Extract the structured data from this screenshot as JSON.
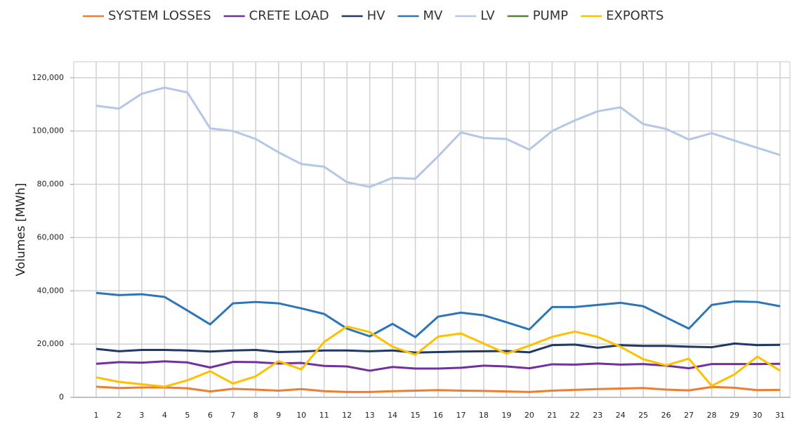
{
  "chart_data": {
    "type": "line",
    "y_label": "Volumes [MWh]",
    "categories": [
      "1",
      "2",
      "3",
      "4",
      "5",
      "6",
      "7",
      "8",
      "9",
      "10",
      "11",
      "12",
      "13",
      "14",
      "15",
      "16",
      "17",
      "18",
      "19",
      "20",
      "21",
      "22",
      "23",
      "24",
      "25",
      "26",
      "27",
      "28",
      "29",
      "30",
      "31"
    ],
    "series": [
      {
        "name": "SYSTEM LOSSES",
        "color": "#ed7d31",
        "values": [
          4000,
          3500,
          3700,
          3700,
          3400,
          2200,
          3200,
          2900,
          2500,
          3100,
          2300,
          2000,
          2000,
          2300,
          2500,
          2700,
          2500,
          2400,
          2200,
          2000,
          2500,
          2800,
          3100,
          3300,
          3500,
          2900,
          2600,
          3900,
          3600,
          2700,
          2800
        ]
      },
      {
        "name": "CRETE LOAD",
        "color": "#7030a0",
        "values": [
          12600,
          13200,
          13000,
          13500,
          13100,
          11200,
          13300,
          13200,
          12700,
          12900,
          11800,
          11600,
          10000,
          11400,
          10800,
          10800,
          11100,
          11900,
          11600,
          10900,
          12400,
          12300,
          12700,
          12300,
          12500,
          11900,
          10900,
          12500,
          12500,
          12500,
          12600
        ]
      },
      {
        "name": "HV",
        "color": "#203864",
        "values": [
          18200,
          17300,
          17800,
          17800,
          17600,
          17200,
          17600,
          17800,
          17000,
          17200,
          17600,
          17600,
          17300,
          17600,
          16800,
          17000,
          17200,
          17300,
          17400,
          16900,
          19600,
          19800,
          18600,
          19600,
          19300,
          19300,
          19000,
          18800,
          20200,
          19600,
          19700
        ]
      },
      {
        "name": "MV",
        "color": "#2e75b6",
        "values": [
          39200,
          38400,
          38700,
          37700,
          32600,
          27400,
          35300,
          35800,
          35300,
          33400,
          31300,
          25800,
          22900,
          27600,
          22600,
          30300,
          31800,
          30800,
          28200,
          25500,
          33900,
          33900,
          34700,
          35500,
          34200,
          30000,
          25800,
          34700,
          36000,
          35800,
          34200
        ]
      },
      {
        "name": "LV",
        "color": "#b4c7e7",
        "values": [
          109500,
          108400,
          114000,
          116300,
          114500,
          101000,
          100000,
          97000,
          92000,
          87600,
          86600,
          80800,
          79000,
          82400,
          82100,
          90500,
          99500,
          97400,
          97000,
          93000,
          100000,
          104000,
          107400,
          108900,
          102600,
          100800,
          96800,
          99200,
          96400,
          93700,
          91000
        ]
      },
      {
        "name": "PUMP",
        "color": "#548235",
        "values": [
          null,
          null,
          null,
          null,
          null,
          null,
          null,
          null,
          null,
          null,
          null,
          null,
          null,
          null,
          null,
          null,
          null,
          null,
          null,
          null,
          null,
          null,
          null,
          null,
          null,
          null,
          null,
          null,
          null,
          null,
          null
        ]
      },
      {
        "name": "EXPORTS",
        "color": "#ffc000",
        "values": [
          7500,
          5800,
          4900,
          4000,
          6400,
          9800,
          5200,
          7900,
          13600,
          10500,
          20800,
          26600,
          24500,
          19000,
          16000,
          22800,
          24000,
          20200,
          16400,
          19400,
          22700,
          24700,
          22700,
          19000,
          14300,
          12000,
          14500,
          4300,
          8600,
          15300,
          10000
        ]
      }
    ],
    "ylim": [
      0,
      126000
    ],
    "yticks": [
      0,
      {
        "value": 20000,
        "label": "20,000"
      },
      {
        "value": 40000,
        "label": "40,000"
      },
      {
        "value": 60000,
        "label": "60,000"
      },
      {
        "value": 80000,
        "label": "80,000"
      },
      {
        "value": 100000,
        "label": "100,000"
      },
      {
        "value": 120000,
        "label": "120,000"
      }
    ],
    "grid": true
  }
}
